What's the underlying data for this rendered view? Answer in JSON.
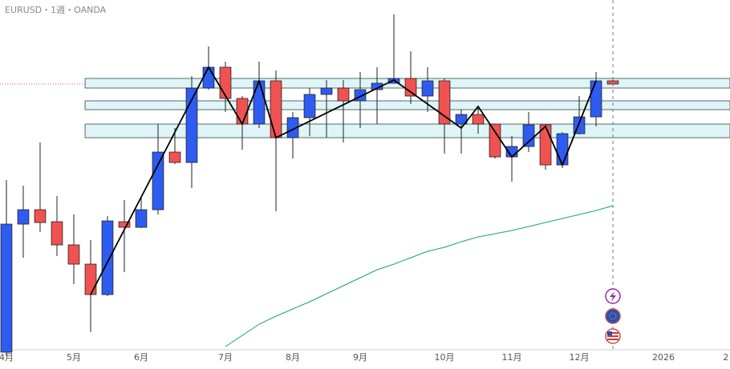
{
  "chart_data": {
    "type": "candlestick",
    "title": "EURUSD・1週・OANDA",
    "up_color": "#2f5cf0",
    "down_color": "#f05252",
    "open": [
      1.102,
      1.134,
      1.1376,
      1.1346,
      1.1288,
      1.124,
      1.1164,
      1.1346,
      1.1332,
      1.1376,
      1.152,
      1.1494,
      1.168,
      1.1732,
      1.1654,
      1.159,
      1.1698,
      1.1556,
      1.1606,
      1.1664,
      1.168,
      1.1648,
      1.1676,
      1.1692,
      1.1704,
      1.166,
      1.1698,
      1.159,
      1.1614,
      1.159,
      1.1508,
      1.1534,
      1.1588,
      1.1488,
      1.1566,
      1.1608,
      1.1698
    ],
    "high": [
      1.145,
      1.1436,
      1.1544,
      1.141,
      1.1364,
      1.13,
      1.136,
      1.14,
      1.141,
      1.159,
      1.158,
      1.171,
      1.1784,
      1.1746,
      1.166,
      1.1746,
      1.1724,
      1.162,
      1.168,
      1.17,
      1.17,
      1.172,
      1.1732,
      1.1864,
      1.1772,
      1.1732,
      1.1704,
      1.1626,
      1.1636,
      1.159,
      1.156,
      1.162,
      1.1588,
      1.157,
      1.166,
      1.172,
      1.17
    ],
    "low": [
      1.101,
      1.1256,
      1.132,
      1.126,
      1.119,
      1.107,
      1.116,
      1.122,
      1.133,
      1.1364,
      1.149,
      1.143,
      1.1676,
      1.162,
      1.1526,
      1.158,
      1.1372,
      1.1504,
      1.156,
      1.1556,
      1.1544,
      1.158,
      1.159,
      1.1692,
      1.164,
      1.162,
      1.1516,
      1.1516,
      1.1566,
      1.1504,
      1.1446,
      1.152,
      1.1476,
      1.148,
      1.1564,
      1.1584,
      1.1688
    ],
    "close": [
      1.134,
      1.1376,
      1.1344,
      1.1288,
      1.124,
      1.1164,
      1.1348,
      1.1332,
      1.1376,
      1.152,
      1.1494,
      1.168,
      1.1732,
      1.1654,
      1.159,
      1.1698,
      1.1556,
      1.1606,
      1.1664,
      1.168,
      1.1648,
      1.1676,
      1.1692,
      1.1704,
      1.166,
      1.1698,
      1.159,
      1.1614,
      1.159,
      1.1508,
      1.1534,
      1.1588,
      1.1488,
      1.1566,
      1.1608,
      1.1698,
      1.169
    ],
    "moving_average": {
      "color": "#1a9e8a",
      "values": [
        null,
        null,
        null,
        null,
        null,
        null,
        null,
        null,
        null,
        null,
        null,
        null,
        null,
        1.1034,
        1.1062,
        1.109,
        1.111,
        1.1128,
        1.1146,
        1.1166,
        1.1186,
        1.1206,
        1.1226,
        1.124,
        1.1256,
        1.1272,
        1.1282,
        1.1296,
        1.1308,
        1.1316,
        1.1324,
        1.1334,
        1.1344,
        1.1354,
        1.1364,
        1.1374,
        1.1386
      ]
    },
    "zigzag": {
      "color": "#000000",
      "x": [
        5,
        12,
        14,
        15,
        16,
        23,
        27,
        28,
        30,
        32,
        33,
        35
      ],
      "values": [
        1.1164,
        1.1732,
        1.159,
        1.1698,
        1.1556,
        1.17,
        1.158,
        1.1634,
        1.1508,
        1.1584,
        1.1488,
        1.1698
      ]
    },
    "zones": [
      {
        "from": 5,
        "top": 1.1704,
        "bottom": 1.168
      },
      {
        "from": 5,
        "top": 1.1648,
        "bottom": 1.1626
      },
      {
        "from": 5,
        "top": 1.159,
        "bottom": 1.1556
      }
    ],
    "zone_color": "#dff5f7",
    "last_price": 1.169,
    "xlim": [
      -0.38,
      42.95
    ],
    "ylim": [
      1.1026,
      1.19
    ],
    "xticks": [
      {
        "value": 0,
        "label": "4月"
      },
      {
        "value": 4,
        "label": "5月"
      },
      {
        "value": 8,
        "label": "6月"
      },
      {
        "value": 13,
        "label": "7月"
      },
      {
        "value": 17,
        "label": "8月"
      },
      {
        "value": 21,
        "label": "9月"
      },
      {
        "value": 26,
        "label": "10月"
      },
      {
        "value": 30,
        "label": "11月"
      },
      {
        "value": 34,
        "label": "12月"
      },
      {
        "value": 39,
        "label": "2026"
      },
      {
        "value": 42.7,
        "label": "2"
      }
    ]
  }
}
